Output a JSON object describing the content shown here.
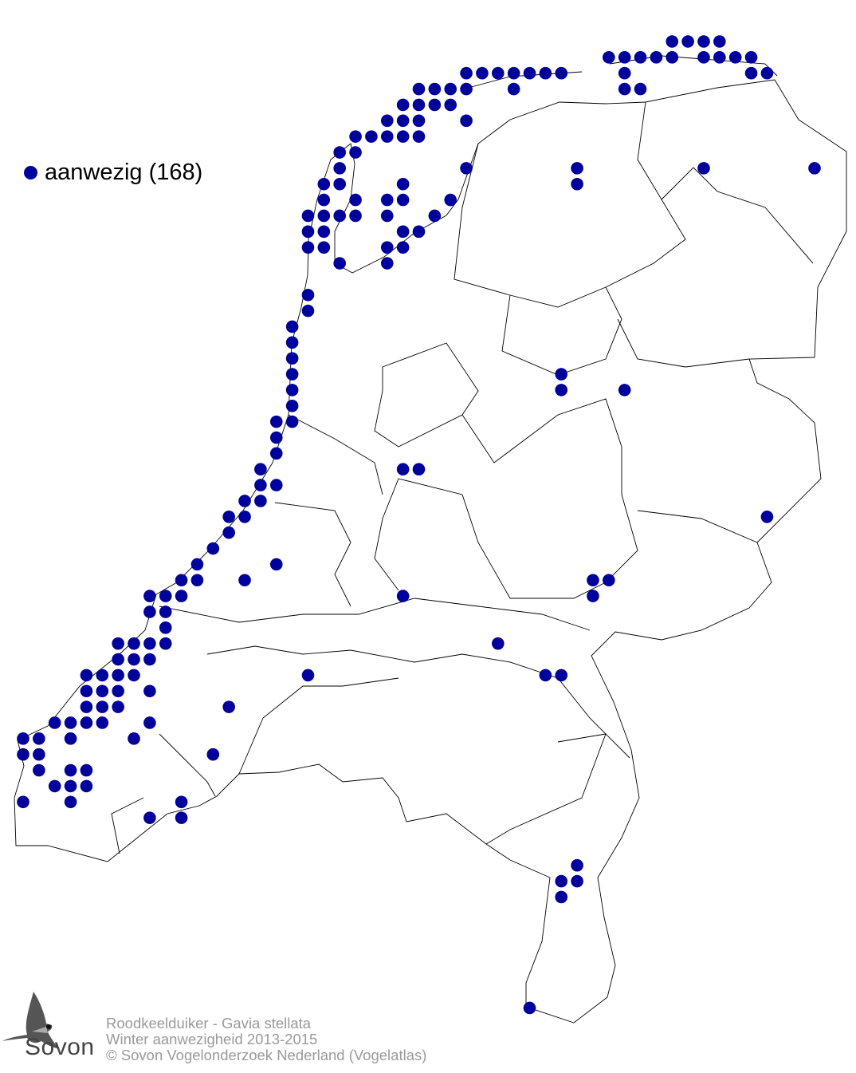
{
  "legend": {
    "label": "aanwezig (168)",
    "color": "#00009c"
  },
  "caption": {
    "line1": "Roodkeelduiker - Gavia stellata",
    "line2": "Winter aanwezigheid 2013-2015",
    "line3": "© Sovon Vogelonderzoek Nederland (Vogelatlas)"
  },
  "logo": {
    "text": "Sovon",
    "icon": "swallow-logo-icon"
  },
  "map": {
    "region": "Nederland",
    "dot_color": "#00009c",
    "border_color": "#000000"
  }
}
